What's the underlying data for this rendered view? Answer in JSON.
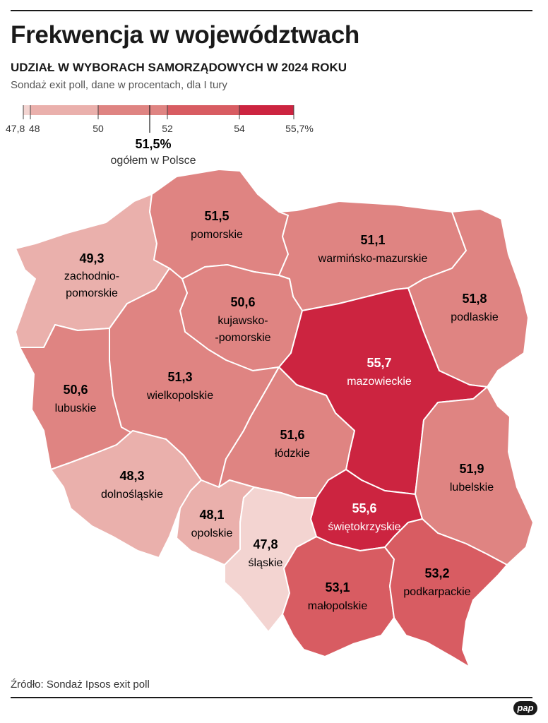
{
  "title": "Frekwencja w województwach",
  "subtitle": "UDZIAŁ W WYBORACH SAMORZĄDOWYCH W 2024 ROKU",
  "note": "Sondaż exit poll, dane w procentach, dla I tury",
  "legend": {
    "ticks": [
      "47,8",
      "48",
      "50",
      "52",
      "54",
      "55,7%"
    ],
    "national_value": "51,5%",
    "national_label": "ogółem w Polsce",
    "colors": [
      "#f3d4d1",
      "#eab0ac",
      "#df8482",
      "#d85c62",
      "#cc2440"
    ]
  },
  "regions": [
    {
      "id": "zachodniopomorskie",
      "value": "49,3",
      "name_lines": [
        "zachodnio-",
        "pomorskie"
      ],
      "color": "#eab0ac"
    },
    {
      "id": "pomorskie",
      "value": "51,5",
      "name_lines": [
        "pomorskie"
      ],
      "color": "#df8482"
    },
    {
      "id": "warminsko-mazurskie",
      "value": "51,1",
      "name_lines": [
        "warmińsko-mazurskie"
      ],
      "color": "#df8482"
    },
    {
      "id": "podlaskie",
      "value": "51,8",
      "name_lines": [
        "podlaskie"
      ],
      "color": "#df8482"
    },
    {
      "id": "kujawsko-pomorskie",
      "value": "50,6",
      "name_lines": [
        "kujawsko-",
        "-pomorskie"
      ],
      "color": "#df8482"
    },
    {
      "id": "lubuskie",
      "value": "50,6",
      "name_lines": [
        "lubuskie"
      ],
      "color": "#df8482"
    },
    {
      "id": "wielkopolskie",
      "value": "51,3",
      "name_lines": [
        "wielkopolskie"
      ],
      "color": "#df8482"
    },
    {
      "id": "mazowieckie",
      "value": "55,7",
      "name_lines": [
        "mazowieckie"
      ],
      "color": "#cc2440"
    },
    {
      "id": "lodzkie",
      "value": "51,6",
      "name_lines": [
        "łódzkie"
      ],
      "color": "#df8482"
    },
    {
      "id": "lubelskie",
      "value": "51,9",
      "name_lines": [
        "lubelskie"
      ],
      "color": "#df8482"
    },
    {
      "id": "dolnoslaskie",
      "value": "48,3",
      "name_lines": [
        "dolnośląskie"
      ],
      "color": "#eab0ac"
    },
    {
      "id": "opolskie",
      "value": "48,1",
      "name_lines": [
        "opolskie"
      ],
      "color": "#eab0ac"
    },
    {
      "id": "swietokrzyskie",
      "value": "55,6",
      "name_lines": [
        "świętokrzyskie"
      ],
      "color": "#cc2440"
    },
    {
      "id": "slaskie",
      "value": "47,8",
      "name_lines": [
        "śląskie"
      ],
      "color": "#f3d4d1"
    },
    {
      "id": "malopolskie",
      "value": "53,1",
      "name_lines": [
        "małopolskie"
      ],
      "color": "#d85c62"
    },
    {
      "id": "podkarpackie",
      "value": "53,2",
      "name_lines": [
        "podkarpackie"
      ],
      "color": "#d85c62"
    }
  ],
  "source": "Źródło: Sondaż Ipsos exit poll",
  "logo": "pap"
}
